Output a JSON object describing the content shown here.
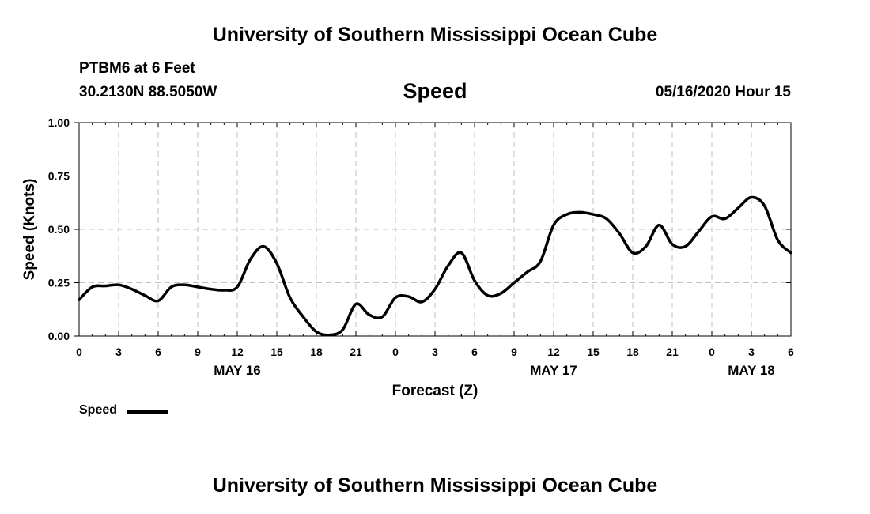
{
  "header": {
    "top_title": "University of Southern Mississippi Ocean Cube",
    "station": "PTBM6 at 6 Feet",
    "coords": "30.2130N 88.5050W",
    "timestamp": "05/16/2020 Hour 15",
    "bottom_title": "University of Southern Mississippi Ocean Cube"
  },
  "legend": {
    "label": "Speed",
    "color": "#000000"
  },
  "chart_data": {
    "type": "line",
    "title": "Speed",
    "xlabel": "Forecast (Z)",
    "ylabel": "Speed (Knots)",
    "ylim": [
      0,
      1
    ],
    "xlim": [
      0,
      54
    ],
    "grid": true,
    "x_tick_values": [
      0,
      3,
      6,
      9,
      12,
      15,
      18,
      21,
      24,
      27,
      30,
      33,
      36,
      39,
      42,
      45,
      48,
      51,
      54
    ],
    "x_tick_labels": [
      "0",
      "3",
      "6",
      "9",
      "12",
      "15",
      "18",
      "21",
      "0",
      "3",
      "6",
      "9",
      "12",
      "15",
      "18",
      "21",
      "0",
      "3",
      "6"
    ],
    "y_tick_values": [
      0,
      0.25,
      0.5,
      0.75,
      1
    ],
    "y_tick_labels": [
      "0.00",
      "0.25",
      "0.50",
      "0.75",
      "1.00"
    ],
    "date_labels": [
      {
        "x": 12,
        "label": "MAY 16"
      },
      {
        "x": 36,
        "label": "MAY 17"
      },
      {
        "x": 51,
        "label": "MAY 18"
      }
    ],
    "series": [
      {
        "name": "Speed",
        "x": [
          0,
          1,
          2,
          3,
          4,
          5,
          6,
          7,
          8,
          9,
          10,
          11,
          12,
          13,
          14,
          15,
          16,
          17,
          18,
          19,
          20,
          21,
          22,
          23,
          24,
          25,
          26,
          27,
          28,
          29,
          30,
          31,
          32,
          33,
          34,
          35,
          36,
          37,
          38,
          39,
          40,
          41,
          42,
          43,
          44,
          45,
          46,
          47,
          48,
          49,
          50,
          51,
          52,
          53,
          54
        ],
        "values": [
          0.17,
          0.23,
          0.235,
          0.24,
          0.22,
          0.19,
          0.165,
          0.23,
          0.24,
          0.23,
          0.22,
          0.215,
          0.23,
          0.36,
          0.42,
          0.34,
          0.18,
          0.09,
          0.02,
          0.005,
          0.03,
          0.15,
          0.1,
          0.09,
          0.18,
          0.185,
          0.16,
          0.22,
          0.33,
          0.39,
          0.26,
          0.19,
          0.2,
          0.25,
          0.3,
          0.35,
          0.52,
          0.57,
          0.58,
          0.57,
          0.55,
          0.48,
          0.39,
          0.42,
          0.52,
          0.43,
          0.42,
          0.49,
          0.56,
          0.55,
          0.6,
          0.65,
          0.61,
          0.45,
          0.39
        ]
      }
    ]
  }
}
